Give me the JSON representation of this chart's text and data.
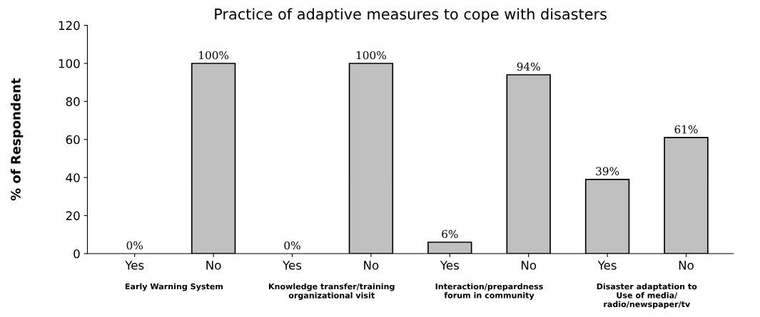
{
  "chart_data": {
    "type": "bar",
    "title": "Practice of adaptive measures to cope with disasters",
    "ylabel": "% of Respondent",
    "categories": [
      "Yes",
      "No",
      "Yes",
      "No",
      "Yes",
      "No",
      "Yes",
      "No"
    ],
    "values": [
      0,
      100,
      0,
      100,
      6,
      94,
      39,
      61
    ],
    "value_labels": [
      "0%",
      "100%",
      "0%",
      "100%",
      "6%",
      "94%",
      "39%",
      "61%"
    ],
    "color": "#c0c0c0",
    "ylim": [
      0,
      120
    ],
    "yticks": [
      0,
      20,
      40,
      60,
      80,
      100,
      120
    ],
    "grid": false,
    "annotations": [
      "Early Warning System",
      "Knowledge transfer/training\norganizational visit",
      "Interaction/prepardness\nforum in community",
      "Disaster adaptation to\nUse of media/\nradio/newspaper/tv"
    ]
  }
}
